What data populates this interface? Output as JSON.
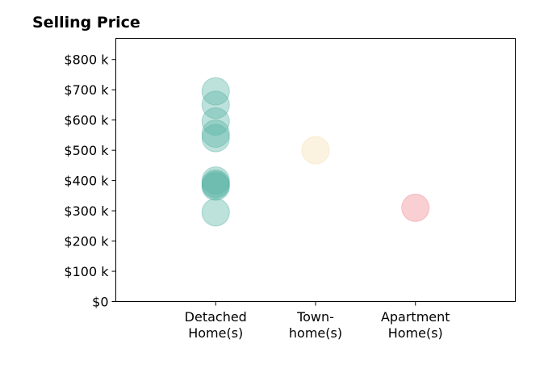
{
  "chart_data": {
    "type": "scatter",
    "title": "Selling Price",
    "xlabel": "",
    "ylabel": "",
    "categories": [
      [
        "Detached",
        "Home(s)"
      ],
      [
        "Town-",
        "home(s)"
      ],
      [
        "Apartment",
        "Home(s)"
      ]
    ],
    "y_ticks": [
      {
        "value": 0,
        "label": "$0"
      },
      {
        "value": 100,
        "label": "$100 k"
      },
      {
        "value": 200,
        "label": "$200 k"
      },
      {
        "value": 300,
        "label": "$300 k"
      },
      {
        "value": 400,
        "label": "$400 k"
      },
      {
        "value": 500,
        "label": "$500 k"
      },
      {
        "value": 600,
        "label": "$600 k"
      },
      {
        "value": 700,
        "label": "$700 k"
      },
      {
        "value": 800,
        "label": "$800 k"
      }
    ],
    "ylim": [
      0,
      870
    ],
    "grid": false,
    "series": [
      {
        "category_index": 0,
        "color": "#5ab4a4",
        "values": [
          695,
          650,
          595,
          555,
          540,
          400,
          390,
          385,
          380,
          295
        ]
      },
      {
        "category_index": 1,
        "color": "#f5deb0",
        "values": [
          500
        ]
      },
      {
        "category_index": 2,
        "color": "#f08890",
        "values": [
          310
        ]
      }
    ]
  }
}
